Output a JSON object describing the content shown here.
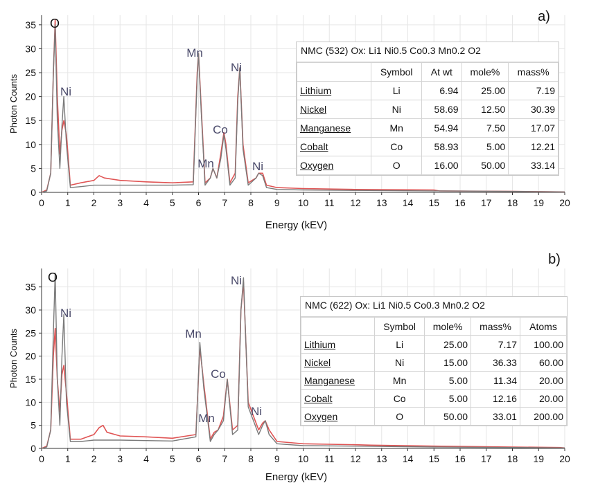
{
  "chart_data": [
    {
      "type": "line",
      "panel_label": "a)",
      "xlabel": "Energy (kEV)",
      "ylabel": "Photon Counts",
      "xlim": [
        0,
        20
      ],
      "ylim": [
        0,
        37
      ],
      "xticks": [
        0,
        1,
        2,
        3,
        4,
        5,
        6,
        7,
        8,
        9,
        10,
        11,
        12,
        13,
        14,
        15,
        16,
        17,
        18,
        19,
        20
      ],
      "yticks": [
        0,
        5,
        10,
        15,
        20,
        25,
        30,
        35
      ],
      "grid": true,
      "series": [
        {
          "color": "#e05555",
          "x": [
            0,
            0.2,
            0.35,
            0.45,
            0.52,
            0.6,
            0.7,
            0.78,
            0.85,
            0.95,
            1.1,
            1.5,
            2.0,
            2.2,
            2.4,
            3,
            4,
            5,
            5.8,
            5.95,
            6.0,
            6.1,
            6.25,
            6.45,
            6.55,
            6.7,
            6.85,
            6.97,
            7.05,
            7.2,
            7.4,
            7.5,
            7.58,
            7.7,
            7.9,
            8.2,
            8.3,
            8.45,
            8.6,
            9,
            10,
            12,
            15,
            15.2,
            18,
            20
          ],
          "y": [
            0,
            0.5,
            4,
            25,
            36,
            20,
            8,
            13,
            15,
            12,
            1.5,
            2,
            2.5,
            3.5,
            3,
            2.5,
            2.2,
            2,
            2.2,
            25,
            29,
            18,
            2,
            3,
            5,
            3,
            8,
            12.5,
            10,
            2,
            4,
            20,
            26,
            10,
            2,
            3,
            4,
            4,
            1.5,
            1,
            0.8,
            0.6,
            0.5,
            0.3,
            0.2,
            0.1
          ]
        },
        {
          "color": "#7a7a7a",
          "x": [
            0,
            0.2,
            0.35,
            0.45,
            0.52,
            0.6,
            0.7,
            0.78,
            0.85,
            0.95,
            1.1,
            1.5,
            2,
            3,
            4,
            5,
            5.8,
            5.95,
            6.0,
            6.1,
            6.25,
            6.45,
            6.55,
            6.7,
            6.85,
            6.97,
            7.05,
            7.2,
            7.4,
            7.5,
            7.58,
            7.7,
            7.9,
            8.2,
            8.3,
            8.45,
            8.6,
            9,
            10,
            12,
            15,
            18,
            20
          ],
          "y": [
            0,
            0.3,
            4,
            25,
            35,
            15,
            5,
            14,
            20,
            10,
            1,
            1.2,
            1.5,
            1.5,
            1.5,
            1.5,
            1.6,
            24,
            29,
            17,
            1.5,
            3,
            5,
            3,
            7,
            12,
            9,
            1.5,
            3,
            19,
            26,
            9,
            1.5,
            3,
            4,
            3.5,
            1,
            0.6,
            0.5,
            0.4,
            0.3,
            0.2,
            0.1
          ]
        }
      ],
      "peak_labels": [
        "O",
        "Ni",
        "Mn",
        "Mn",
        "Co",
        "Ni",
        "Ni"
      ],
      "table": {
        "caption": "NMC (532) Ox:  Li1 Ni0.5 Co0.3 Mn0.2 O2",
        "columns": [
          "",
          "Symbol",
          "At wt",
          "mole%",
          "mass%"
        ],
        "rows": [
          [
            "Lithium",
            "Li",
            "6.94",
            "25.00",
            "7.19"
          ],
          [
            "Nickel",
            "Ni",
            "58.69",
            "12.50",
            "30.39"
          ],
          [
            "Manganese",
            "Mn",
            "54.94",
            "7.50",
            "17.07"
          ],
          [
            "Cobalt",
            "Co",
            "58.93",
            "5.00",
            "12.21"
          ],
          [
            "Oxygen",
            "O",
            "16.00",
            "50.00",
            "33.14"
          ]
        ]
      }
    },
    {
      "type": "line",
      "panel_label": "b)",
      "xlabel": "Energy (kEV)",
      "ylabel": "Photon Counts",
      "xlim": [
        0,
        20
      ],
      "ylim": [
        0,
        39
      ],
      "xticks": [
        0,
        1,
        2,
        3,
        4,
        5,
        6,
        7,
        8,
        9,
        10,
        11,
        12,
        13,
        14,
        15,
        16,
        17,
        18,
        19,
        20
      ],
      "yticks": [
        0,
        5,
        10,
        15,
        20,
        25,
        30,
        35
      ],
      "grid": true,
      "series": [
        {
          "color": "#e05555",
          "x": [
            0,
            0.2,
            0.35,
            0.45,
            0.52,
            0.6,
            0.7,
            0.78,
            0.85,
            0.95,
            1.1,
            1.5,
            2.0,
            2.2,
            2.35,
            2.5,
            3,
            4,
            5,
            5.9,
            6.05,
            6.2,
            6.45,
            6.6,
            6.75,
            6.95,
            7.1,
            7.3,
            7.5,
            7.62,
            7.72,
            7.9,
            8.3,
            8.45,
            8.55,
            8.7,
            9,
            10,
            12,
            12.6,
            15,
            18,
            19.8,
            20
          ],
          "y": [
            0,
            0.5,
            4,
            20,
            26,
            15,
            8,
            16,
            18,
            12,
            2,
            2,
            3,
            4.5,
            5,
            3.5,
            2.7,
            2.5,
            2.2,
            3,
            22,
            14,
            2,
            3.5,
            4,
            7,
            15,
            4,
            5,
            30,
            36,
            10,
            4,
            5.5,
            6,
            4,
            1.5,
            1,
            0.8,
            0.7,
            0.5,
            0.3,
            0.2,
            0.1
          ]
        },
        {
          "color": "#7a7a7a",
          "x": [
            0,
            0.2,
            0.35,
            0.45,
            0.52,
            0.6,
            0.7,
            0.78,
            0.85,
            0.95,
            1.1,
            1.5,
            2,
            3,
            4,
            5,
            5.9,
            6.05,
            6.2,
            6.45,
            6.6,
            6.75,
            6.95,
            7.1,
            7.3,
            7.5,
            7.62,
            7.72,
            7.9,
            8.3,
            8.45,
            8.55,
            8.7,
            9,
            10,
            12,
            15,
            18,
            20
          ],
          "y": [
            0,
            0.3,
            4,
            25,
            38,
            15,
            5,
            20,
            29,
            10,
            1.5,
            1.5,
            1.8,
            1.8,
            1.7,
            1.6,
            2.5,
            23,
            13,
            1.5,
            3,
            4,
            6,
            15,
            3,
            4,
            30,
            37,
            9,
            3,
            5,
            6,
            3,
            1,
            0.6,
            0.5,
            0.3,
            0.2,
            0.1
          ]
        }
      ],
      "peak_labels": [
        "O",
        "Ni",
        "Mn",
        "Mn",
        "Co",
        "Ni",
        "Ni"
      ],
      "table": {
        "caption": "NMC (622) Ox: Li1 Ni0.5 Co0.3 Mn0.2 O2",
        "columns": [
          "",
          "Symbol",
          "mole%",
          "mass%",
          "Atoms"
        ],
        "rows": [
          [
            "Lithium",
            "Li",
            "25.00",
            "7.17",
            "100.00"
          ],
          [
            "Nickel",
            "Ni",
            "15.00",
            "36.33",
            "60.00"
          ],
          [
            "Manganese",
            "Mn",
            "5.00",
            "11.34",
            "20.00"
          ],
          [
            "Cobalt",
            "Co",
            "5.00",
            "12.16",
            "20.00"
          ],
          [
            "Oxygen",
            "O",
            "50.00",
            "33.01",
            "200.00"
          ]
        ]
      }
    }
  ]
}
